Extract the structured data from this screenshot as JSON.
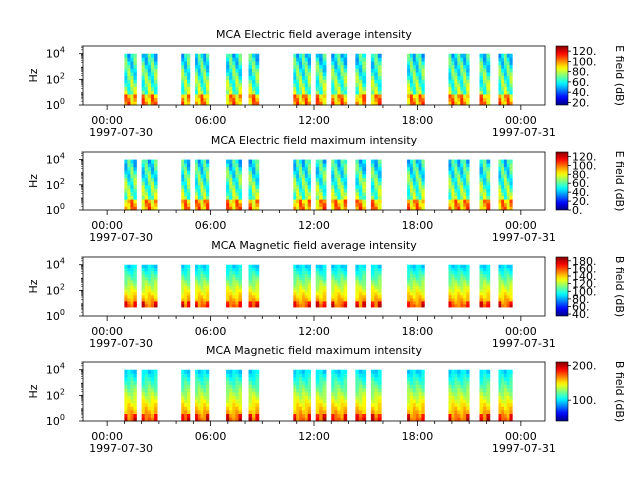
{
  "time_axis": {
    "ticks": [
      "00:00",
      "06:00",
      "12:00",
      "18:00",
      "00:00"
    ],
    "start_date": "1997-07-30",
    "end_date": "1997-07-31"
  },
  "freq_axis": {
    "label": "Hz",
    "ticks": [
      {
        "base": "10",
        "exp": "0",
        "value": 1
      },
      {
        "base": "10",
        "exp": "2",
        "value": 100
      },
      {
        "base": "10",
        "exp": "4",
        "value": 10000
      }
    ],
    "scale": "log"
  },
  "colormap": "jet",
  "chart_data": [
    {
      "type": "heatmap",
      "title": "MCA  Electric field average intensity",
      "xlabel": "",
      "ylabel": "Hz",
      "x_range_hours": [
        -1.4,
        25.4
      ],
      "y_scale": "log",
      "ylim": [
        1,
        40000
      ],
      "colorbar": {
        "label": "E field (dB)",
        "range": [
          15,
          130
        ],
        "ticks": [
          "20.",
          "40.",
          "60.",
          "80.",
          "100.",
          "120."
        ],
        "tick_values": [
          20,
          40,
          60,
          80,
          100,
          120
        ]
      },
      "data_intervals_hours": [
        [
          1.0,
          1.7
        ],
        [
          2.0,
          2.9
        ],
        [
          4.3,
          4.8
        ],
        [
          5.1,
          5.9
        ],
        [
          6.9,
          7.8
        ],
        [
          8.2,
          8.8
        ],
        [
          10.8,
          11.8
        ],
        [
          12.1,
          12.7
        ],
        [
          13.0,
          13.9
        ],
        [
          14.4,
          15.0
        ],
        [
          15.3,
          15.9
        ],
        [
          17.4,
          18.4
        ],
        [
          19.8,
          21.0
        ],
        [
          21.6,
          22.2
        ],
        [
          22.7,
          23.5
        ]
      ],
      "freq_range_hz": [
        1,
        10000
      ]
    },
    {
      "type": "heatmap",
      "title": "MCA  Electric field maximum intensity",
      "xlabel": "",
      "ylabel": "Hz",
      "x_range_hours": [
        -1.4,
        25.4
      ],
      "y_scale": "log",
      "ylim": [
        1,
        40000
      ],
      "colorbar": {
        "label": "E field (dB)",
        "range": [
          0,
          130
        ],
        "ticks": [
          "0.",
          "20.",
          "40.",
          "60.",
          "80.",
          "100.",
          "120."
        ],
        "tick_values": [
          0,
          20,
          40,
          60,
          80,
          100,
          120
        ]
      },
      "data_intervals_hours": [
        [
          1.0,
          1.7
        ],
        [
          2.0,
          2.9
        ],
        [
          4.3,
          4.8
        ],
        [
          5.1,
          5.9
        ],
        [
          6.9,
          7.8
        ],
        [
          8.2,
          8.8
        ],
        [
          10.8,
          11.8
        ],
        [
          12.1,
          12.7
        ],
        [
          13.0,
          13.9
        ],
        [
          14.4,
          15.0
        ],
        [
          15.3,
          15.9
        ],
        [
          17.4,
          18.4
        ],
        [
          19.8,
          21.0
        ],
        [
          21.6,
          22.2
        ],
        [
          22.7,
          23.5
        ]
      ],
      "freq_range_hz": [
        1,
        10000
      ]
    },
    {
      "type": "heatmap",
      "title": "MCA  Magnetic field average intensity",
      "xlabel": "",
      "ylabel": "Hz",
      "x_range_hours": [
        -1.4,
        25.4
      ],
      "y_scale": "log",
      "ylim": [
        1,
        40000
      ],
      "colorbar": {
        "label": "B field (dB)",
        "range": [
          35,
          190
        ],
        "ticks": [
          "40.",
          "60.",
          "80.",
          "100.",
          "120.",
          "140.",
          "160.",
          "180."
        ],
        "tick_values": [
          40,
          60,
          80,
          100,
          120,
          140,
          160,
          180
        ]
      },
      "data_intervals_hours": [
        [
          1.0,
          1.7
        ],
        [
          2.0,
          2.9
        ],
        [
          4.3,
          4.8
        ],
        [
          5.1,
          5.9
        ],
        [
          6.9,
          7.8
        ],
        [
          8.2,
          8.8
        ],
        [
          10.8,
          11.8
        ],
        [
          12.1,
          12.7
        ],
        [
          13.0,
          13.9
        ],
        [
          14.4,
          15.0
        ],
        [
          15.3,
          15.9
        ],
        [
          17.4,
          18.4
        ],
        [
          19.8,
          21.0
        ],
        [
          21.6,
          22.2
        ],
        [
          22.7,
          23.5
        ]
      ],
      "freq_range_hz": [
        5,
        10000
      ]
    },
    {
      "type": "heatmap",
      "title": "MCA  Magnetic field maximum intensity",
      "xlabel": "",
      "ylabel": "Hz",
      "x_range_hours": [
        -1.4,
        25.4
      ],
      "y_scale": "log",
      "ylim": [
        1,
        40000
      ],
      "colorbar": {
        "label": "B field (dB)",
        "range": [
          40,
          210
        ],
        "ticks": [
          "100.",
          "200."
        ],
        "tick_values": [
          100,
          200
        ]
      },
      "data_intervals_hours": [
        [
          1.0,
          1.7
        ],
        [
          2.0,
          2.9
        ],
        [
          4.3,
          4.8
        ],
        [
          5.1,
          5.9
        ],
        [
          6.9,
          7.8
        ],
        [
          8.2,
          8.8
        ],
        [
          10.8,
          11.8
        ],
        [
          12.1,
          12.7
        ],
        [
          13.0,
          13.9
        ],
        [
          14.4,
          15.0
        ],
        [
          15.3,
          15.9
        ],
        [
          17.4,
          18.4
        ],
        [
          19.8,
          21.0
        ],
        [
          21.6,
          22.2
        ],
        [
          22.7,
          23.5
        ]
      ],
      "freq_range_hz": [
        1,
        10000
      ]
    }
  ]
}
